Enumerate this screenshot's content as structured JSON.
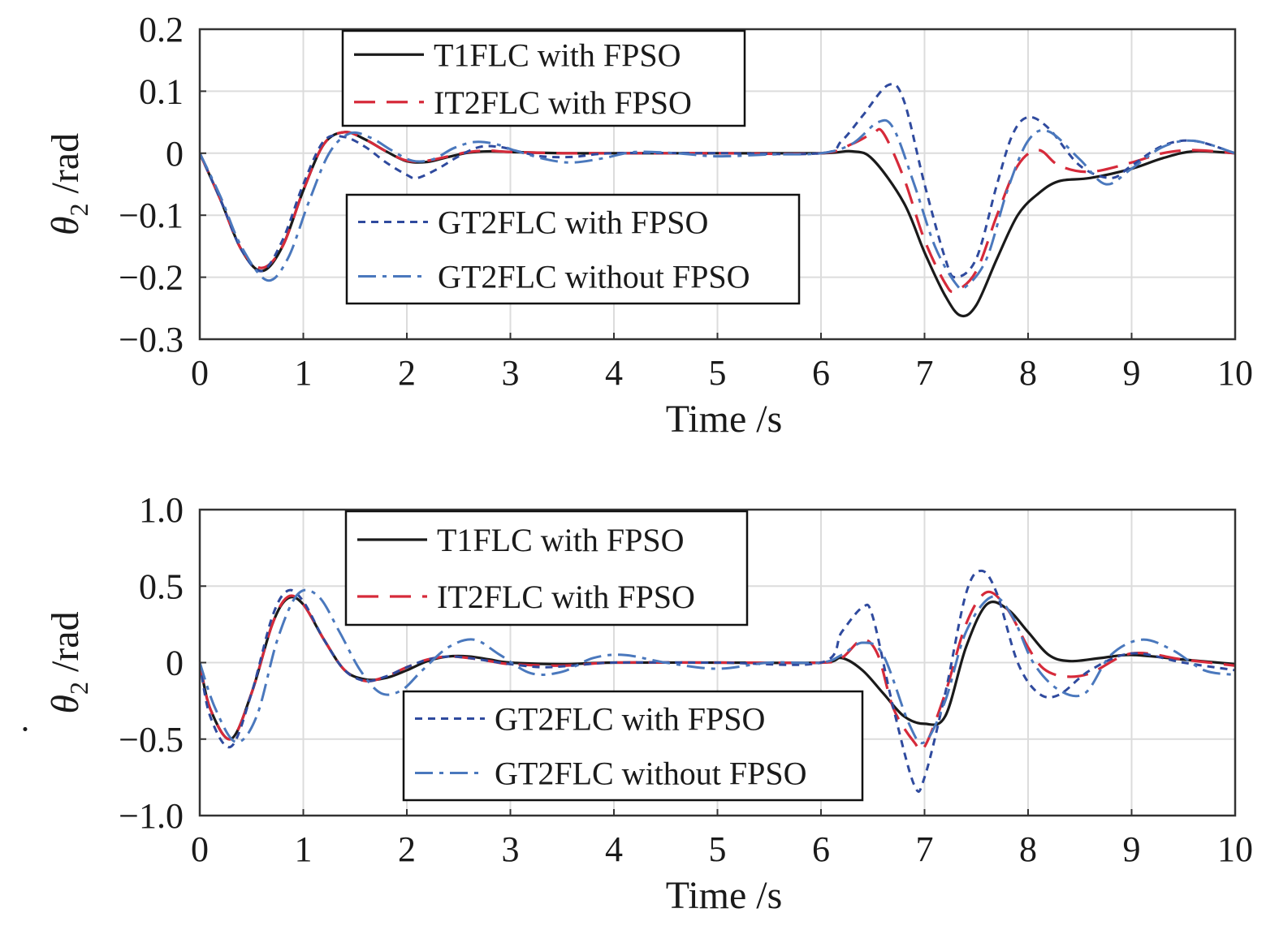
{
  "colors": {
    "t1flc": "#1a1a1a",
    "it2flc": "#d62a3a",
    "gt2flc": "#2f4a9e",
    "gt2flc_nofpso": "#4a78bd",
    "grid": "#dcdcdc",
    "axes": "#333333"
  },
  "chart_data": [
    {
      "type": "line",
      "title": "",
      "xlabel": "Time /s",
      "ylabel": "θ₂ /rad",
      "ylabel_parts": {
        "symbol": "θ",
        "subscript": "2",
        "unit": " /rad"
      },
      "xlim": [
        0,
        10
      ],
      "ylim": [
        -0.3,
        0.2
      ],
      "xticks": [
        0,
        1,
        2,
        3,
        4,
        5,
        6,
        7,
        8,
        9,
        10
      ],
      "xtick_labels": [
        "0",
        "1",
        "2",
        "3",
        "4",
        "5",
        "6",
        "7",
        "8",
        "9",
        "10"
      ],
      "yticks": [
        0.2,
        0.1,
        0,
        -0.1,
        -0.2,
        -0.3
      ],
      "ytick_labels": [
        "0.2",
        "0.1",
        "0",
        "−0.1",
        "−0.2",
        "−0.3"
      ],
      "grid": true,
      "legends": [
        {
          "placement": "top-left",
          "entries": [
            "T1FLC with FPSO",
            "IT2FLC with FPSO"
          ]
        },
        {
          "placement": "center-left",
          "entries": [
            "GT2FLC with FPSO",
            "GT2FLC without FPSO"
          ]
        }
      ],
      "series": [
        {
          "name": "T1FLC with FPSO",
          "style": "solid",
          "x": [
            0,
            0.2,
            0.4,
            0.6,
            0.8,
            1.0,
            1.2,
            1.4,
            1.6,
            1.8,
            2.0,
            2.2,
            2.4,
            2.6,
            2.8,
            3.0,
            3.5,
            4.0,
            5.0,
            6.0,
            6.3,
            6.5,
            6.8,
            7.0,
            7.2,
            7.35,
            7.5,
            7.7,
            7.9,
            8.1,
            8.3,
            8.6,
            9.0,
            9.3,
            9.6,
            10.0
          ],
          "y": [
            0,
            -0.075,
            -0.155,
            -0.19,
            -0.15,
            -0.06,
            0.015,
            0.034,
            0.022,
            0.003,
            -0.013,
            -0.014,
            -0.006,
            0.001,
            0.003,
            0.002,
            0.0,
            0.0,
            0.0,
            0.0,
            0.003,
            -0.01,
            -0.08,
            -0.16,
            -0.23,
            -0.262,
            -0.245,
            -0.17,
            -0.1,
            -0.065,
            -0.045,
            -0.04,
            -0.025,
            -0.008,
            0.003,
            0.0
          ]
        },
        {
          "name": "IT2FLC with FPSO",
          "style": "dashed",
          "x": [
            0,
            0.2,
            0.4,
            0.6,
            0.8,
            1.0,
            1.2,
            1.4,
            1.6,
            1.8,
            2.0,
            2.2,
            2.4,
            2.6,
            2.8,
            3.0,
            3.5,
            4.0,
            5.0,
            6.0,
            6.3,
            6.5,
            6.6,
            6.8,
            7.0,
            7.2,
            7.3,
            7.5,
            7.7,
            7.9,
            8.1,
            8.3,
            8.6,
            9.0,
            9.3,
            9.6,
            10.0
          ],
          "y": [
            0,
            -0.075,
            -0.155,
            -0.185,
            -0.15,
            -0.06,
            0.015,
            0.034,
            0.022,
            0.003,
            -0.012,
            -0.012,
            -0.005,
            0.002,
            0.004,
            0.002,
            0.0,
            0.0,
            0.0,
            0.0,
            0.015,
            0.032,
            0.033,
            -0.04,
            -0.14,
            -0.21,
            -0.222,
            -0.19,
            -0.1,
            -0.02,
            0.005,
            -0.02,
            -0.03,
            -0.015,
            0.0,
            0.005,
            0.0
          ]
        },
        {
          "name": "GT2FLC with FPSO",
          "style": "dotted",
          "x": [
            0,
            0.2,
            0.4,
            0.6,
            0.8,
            1.0,
            1.2,
            1.4,
            1.6,
            1.8,
            2.0,
            2.1,
            2.3,
            2.5,
            2.7,
            2.9,
            3.1,
            3.3,
            3.6,
            4.0,
            5.0,
            6.0,
            6.2,
            6.4,
            6.65,
            6.8,
            7.0,
            7.2,
            7.3,
            7.5,
            7.7,
            7.85,
            8.0,
            8.2,
            8.5,
            8.8,
            9.0,
            9.3,
            9.6,
            10.0
          ],
          "y": [
            0,
            -0.075,
            -0.155,
            -0.19,
            -0.14,
            -0.05,
            0.02,
            0.026,
            0.01,
            -0.015,
            -0.035,
            -0.04,
            -0.025,
            -0.005,
            0.01,
            0.01,
            0.002,
            -0.005,
            -0.006,
            0.0,
            0.0,
            0.0,
            0.02,
            0.06,
            0.11,
            0.085,
            -0.05,
            -0.17,
            -0.2,
            -0.17,
            -0.05,
            0.03,
            0.058,
            0.04,
            -0.02,
            -0.04,
            -0.02,
            0.012,
            0.02,
            0.0
          ]
        },
        {
          "name": "GT2FLC without FPSO",
          "style": "dashdot",
          "x": [
            0,
            0.2,
            0.4,
            0.65,
            0.85,
            1.05,
            1.25,
            1.45,
            1.65,
            1.85,
            2.05,
            2.25,
            2.45,
            2.65,
            2.85,
            3.05,
            3.35,
            3.6,
            3.9,
            4.2,
            4.6,
            5.0,
            5.5,
            6.0,
            6.3,
            6.55,
            6.7,
            6.9,
            7.1,
            7.3,
            7.4,
            7.6,
            7.8,
            8.0,
            8.2,
            8.5,
            8.75,
            9.0,
            9.3,
            9.6,
            10.0
          ],
          "y": [
            0,
            -0.07,
            -0.15,
            -0.205,
            -0.17,
            -0.08,
            0.0,
            0.032,
            0.025,
            0.005,
            -0.012,
            -0.01,
            0.008,
            0.018,
            0.015,
            0.004,
            -0.01,
            -0.015,
            -0.008,
            0.002,
            0.0,
            -0.005,
            -0.002,
            0.0,
            0.015,
            0.05,
            0.04,
            -0.05,
            -0.15,
            -0.21,
            -0.215,
            -0.17,
            -0.06,
            0.02,
            0.035,
            -0.01,
            -0.05,
            -0.025,
            0.01,
            0.02,
            0.0
          ]
        }
      ]
    },
    {
      "type": "line",
      "title": "",
      "xlabel": "Time /s",
      "ylabel": "θ̇₂ /rad",
      "ylabel_parts": {
        "symbol": "θ",
        "dot": "˙",
        "subscript": "2",
        "unit": " /rad"
      },
      "xlim": [
        0,
        10
      ],
      "ylim": [
        -1.0,
        1.0
      ],
      "xticks": [
        0,
        1,
        2,
        3,
        4,
        5,
        6,
        7,
        8,
        9,
        10
      ],
      "xtick_labels": [
        "0",
        "1",
        "2",
        "3",
        "4",
        "5",
        "6",
        "7",
        "8",
        "9",
        "10"
      ],
      "yticks": [
        1.0,
        0.5,
        0,
        -0.5,
        -1.0
      ],
      "ytick_labels": [
        "1.0",
        "0.5",
        "0",
        "−0.5",
        "−1.0"
      ],
      "grid": true,
      "legends": [
        {
          "placement": "top-left",
          "entries": [
            "T1FLC with FPSO",
            "IT2FLC with FPSO"
          ]
        },
        {
          "placement": "bottom-center",
          "entries": [
            "GT2FLC with FPSO",
            "GT2FLC without FPSO"
          ]
        }
      ],
      "series": [
        {
          "name": "T1FLC with FPSO",
          "style": "solid",
          "x": [
            0,
            0.1,
            0.3,
            0.5,
            0.7,
            0.85,
            1.0,
            1.2,
            1.4,
            1.6,
            1.8,
            2.0,
            2.2,
            2.4,
            2.6,
            2.8,
            3.0,
            3.5,
            4.0,
            5.0,
            6.0,
            6.2,
            6.4,
            6.6,
            6.8,
            7.0,
            7.2,
            7.4,
            7.6,
            7.8,
            8.0,
            8.2,
            8.4,
            8.7,
            9.0,
            9.5,
            10.0
          ],
          "y": [
            0,
            -0.3,
            -0.5,
            -0.2,
            0.25,
            0.42,
            0.38,
            0.15,
            -0.05,
            -0.11,
            -0.1,
            -0.05,
            0.01,
            0.04,
            0.04,
            0.02,
            0.0,
            -0.01,
            0.0,
            0.0,
            0.0,
            0.03,
            -0.05,
            -0.2,
            -0.35,
            -0.4,
            -0.35,
            0.1,
            0.38,
            0.35,
            0.2,
            0.05,
            0.01,
            0.03,
            0.05,
            0.02,
            -0.01
          ]
        },
        {
          "name": "IT2FLC with FPSO",
          "style": "dashed",
          "x": [
            0,
            0.1,
            0.3,
            0.5,
            0.7,
            0.85,
            1.0,
            1.2,
            1.4,
            1.6,
            1.8,
            2.0,
            2.2,
            2.4,
            2.6,
            2.8,
            3.0,
            3.5,
            4.0,
            5.0,
            6.0,
            6.2,
            6.4,
            6.55,
            6.7,
            6.9,
            7.0,
            7.2,
            7.4,
            7.6,
            7.8,
            8.0,
            8.15,
            8.35,
            8.6,
            9.0,
            9.5,
            10.0
          ],
          "y": [
            0,
            -0.3,
            -0.5,
            -0.2,
            0.25,
            0.43,
            0.38,
            0.15,
            -0.05,
            -0.12,
            -0.09,
            -0.03,
            0.02,
            0.04,
            0.03,
            0.01,
            -0.01,
            -0.02,
            0.0,
            0.0,
            0.0,
            0.03,
            0.15,
            0.05,
            -0.3,
            -0.52,
            -0.55,
            -0.2,
            0.25,
            0.46,
            0.35,
            0.1,
            -0.04,
            -0.09,
            -0.07,
            0.06,
            0.02,
            -0.02
          ]
        },
        {
          "name": "GT2FLC with FPSO",
          "style": "dotted",
          "x": [
            0,
            0.1,
            0.3,
            0.5,
            0.7,
            0.85,
            1.0,
            1.2,
            1.4,
            1.6,
            1.8,
            2.0,
            2.2,
            2.4,
            2.6,
            2.8,
            3.0,
            3.3,
            3.6,
            4.0,
            5.0,
            6.0,
            6.2,
            6.4,
            6.5,
            6.7,
            6.9,
            7.0,
            7.2,
            7.4,
            7.55,
            7.7,
            7.9,
            8.1,
            8.3,
            8.6,
            9.0,
            9.5,
            10.0
          ],
          "y": [
            0,
            -0.35,
            -0.55,
            -0.2,
            0.3,
            0.47,
            0.4,
            0.15,
            -0.05,
            -0.12,
            -0.09,
            -0.03,
            0.02,
            0.04,
            0.03,
            0.01,
            -0.01,
            -0.03,
            -0.02,
            0.0,
            0.0,
            0.0,
            0.2,
            0.36,
            0.3,
            -0.3,
            -0.8,
            -0.75,
            -0.2,
            0.45,
            0.6,
            0.45,
            0.0,
            -0.2,
            -0.21,
            -0.05,
            0.06,
            0.0,
            -0.05
          ]
        },
        {
          "name": "GT2FLC without FPSO",
          "style": "dashdot",
          "x": [
            0,
            0.15,
            0.35,
            0.55,
            0.75,
            0.95,
            1.15,
            1.35,
            1.55,
            1.75,
            1.95,
            2.15,
            2.4,
            2.65,
            2.9,
            3.2,
            3.5,
            3.8,
            4.1,
            4.5,
            5.0,
            5.5,
            6.0,
            6.2,
            6.4,
            6.6,
            6.85,
            7.0,
            7.2,
            7.4,
            7.65,
            7.85,
            8.05,
            8.3,
            8.55,
            8.8,
            9.1,
            9.4,
            9.7,
            10.0
          ],
          "y": [
            0,
            -0.3,
            -0.52,
            -0.35,
            0.15,
            0.45,
            0.43,
            0.2,
            -0.05,
            -0.2,
            -0.18,
            -0.05,
            0.1,
            0.15,
            0.05,
            -0.07,
            -0.06,
            0.03,
            0.05,
            0.0,
            -0.04,
            0.0,
            0.0,
            0.05,
            0.13,
            0.05,
            -0.4,
            -0.52,
            -0.25,
            0.2,
            0.43,
            0.3,
            0.0,
            -0.18,
            -0.2,
            0.05,
            0.15,
            0.08,
            -0.05,
            -0.08
          ]
        }
      ]
    }
  ]
}
